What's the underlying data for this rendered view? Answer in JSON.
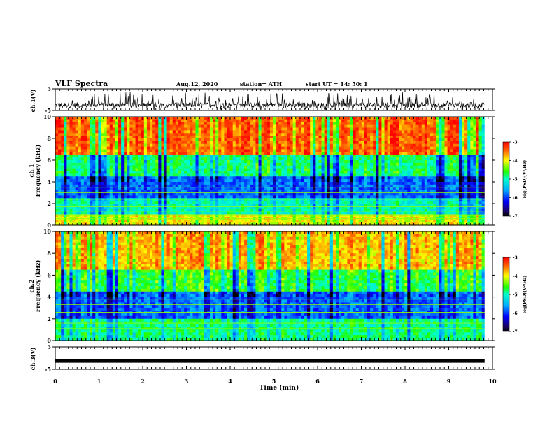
{
  "header": {
    "title": "VLF Spectra",
    "date": "Aug.12, 2020",
    "station": "station= ATH",
    "start": "start  UT =   14: 50: 1"
  },
  "chart_data": [
    {
      "type": "line",
      "panel": "ch1_waveform",
      "ylabel": "ch.1(V)",
      "ylim": [
        -5,
        5
      ],
      "yticks": [
        "5",
        "-5"
      ],
      "xlim": [
        0,
        10
      ],
      "description_values": {
        "baseline": -2.5,
        "noise_min": -5,
        "noise_max": 3.5
      }
    },
    {
      "type": "heatmap",
      "panel": "ch1_spectrogram",
      "ylabel": "ch.1\nFrequency (kHz)",
      "ylabel_line1": "ch.1",
      "ylabel_line2": "Frequency (kHz)",
      "ylim": [
        0,
        10
      ],
      "yticks": [
        "0",
        "2",
        "4",
        "6",
        "8",
        "10"
      ],
      "xlim": [
        0,
        10
      ],
      "colorbar": {
        "label": "log(PSD)(V²/Hz)",
        "min": -7,
        "max": -3,
        "ticks": [
          "-3",
          "-4",
          "-5",
          "-6",
          "-7"
        ]
      },
      "bands_kHz": [
        {
          "from": 0,
          "to": 1.0,
          "level": -4.0
        },
        {
          "from": 1.0,
          "to": 2.5,
          "level": -5.0
        },
        {
          "from": 2.5,
          "to": 4.5,
          "level": -5.8
        },
        {
          "from": 4.5,
          "to": 6.5,
          "level": -4.8
        },
        {
          "from": 6.5,
          "to": 10,
          "level": -3.4
        }
      ]
    },
    {
      "type": "heatmap",
      "panel": "ch2_spectrogram",
      "ylabel_line1": "ch.2",
      "ylabel_line2": "Frequency (kHz)",
      "ylim": [
        0,
        10
      ],
      "yticks": [
        "0",
        "2",
        "4",
        "6",
        "8",
        "10"
      ],
      "xlim": [
        0,
        10
      ],
      "colorbar": {
        "label": "log(PSD)(V²/Hz)",
        "min": -7,
        "max": -3,
        "ticks": [
          "-3",
          "-4",
          "-5",
          "-6",
          "-7"
        ]
      },
      "bands_kHz": [
        {
          "from": 0,
          "to": 2.0,
          "level": -4.8
        },
        {
          "from": 2.0,
          "to": 4.5,
          "level": -5.8
        },
        {
          "from": 4.5,
          "to": 6.5,
          "level": -4.6
        },
        {
          "from": 6.5,
          "to": 10,
          "level": -3.7
        }
      ]
    },
    {
      "type": "line",
      "panel": "ch3_waveform",
      "ylabel": "ch.3(V)",
      "ylim": [
        -5,
        5
      ],
      "yticks": [
        "5",
        "-5"
      ],
      "xlim": [
        0,
        10
      ],
      "description_values": {
        "level": -1.3
      }
    }
  ],
  "xaxis": {
    "label": "Time (min)",
    "ticks": [
      "0",
      "1",
      "2",
      "3",
      "4",
      "5",
      "6",
      "7",
      "8",
      "9",
      "10"
    ],
    "max_data": 9.82
  }
}
